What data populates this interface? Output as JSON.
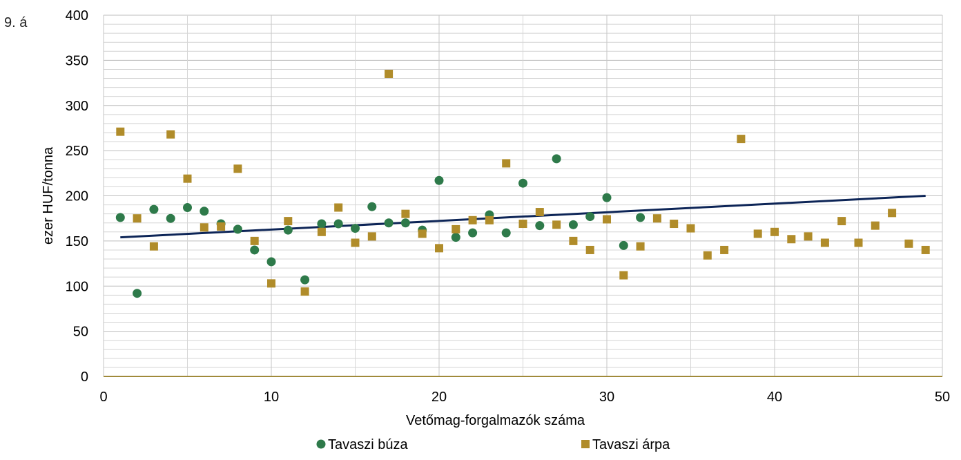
{
  "figure_label": "9. á",
  "chart_data": {
    "type": "scatter",
    "title": "",
    "xlabel": "Vetőmag-forgalmazók száma",
    "ylabel": "ezer HUF/tonna",
    "xlim": [
      0,
      50
    ],
    "ylim": [
      0,
      400
    ],
    "x_ticks": [
      "0",
      "10",
      "20",
      "30",
      "40",
      "50"
    ],
    "y_ticks": [
      "0",
      "50",
      "100",
      "150",
      "200",
      "250",
      "300",
      "350",
      "400"
    ],
    "grid": true,
    "legend_position": "bottom",
    "series": [
      {
        "name": "Tavaszi búza",
        "marker": "circle",
        "color": "#2e7a4a",
        "points": [
          [
            1,
            176
          ],
          [
            2,
            92
          ],
          [
            3,
            185
          ],
          [
            4,
            175
          ],
          [
            5,
            187
          ],
          [
            6,
            183
          ],
          [
            7,
            169
          ],
          [
            8,
            163
          ],
          [
            9,
            140
          ],
          [
            10,
            127
          ],
          [
            11,
            162
          ],
          [
            12,
            107
          ],
          [
            13,
            169
          ],
          [
            14,
            169
          ],
          [
            15,
            164
          ],
          [
            16,
            188
          ],
          [
            17,
            170
          ],
          [
            18,
            170
          ],
          [
            19,
            162
          ],
          [
            20,
            217
          ],
          [
            21,
            154
          ],
          [
            22,
            159
          ],
          [
            23,
            179
          ],
          [
            24,
            159
          ],
          [
            25,
            214
          ],
          [
            26,
            167
          ],
          [
            27,
            241
          ],
          [
            28,
            168
          ],
          [
            29,
            177
          ],
          [
            30,
            198
          ],
          [
            31,
            145
          ],
          [
            32,
            176
          ]
        ]
      },
      {
        "name": "Tavaszi árpa",
        "marker": "square",
        "color": "#b08c2a",
        "points": [
          [
            1,
            271
          ],
          [
            2,
            175
          ],
          [
            3,
            144
          ],
          [
            4,
            268
          ],
          [
            5,
            219
          ],
          [
            6,
            165
          ],
          [
            7,
            166
          ],
          [
            8,
            230
          ],
          [
            9,
            150
          ],
          [
            10,
            103
          ],
          [
            11,
            172
          ],
          [
            12,
            94
          ],
          [
            13,
            160
          ],
          [
            14,
            187
          ],
          [
            15,
            148
          ],
          [
            16,
            155
          ],
          [
            17,
            335
          ],
          [
            18,
            180
          ],
          [
            19,
            158
          ],
          [
            20,
            142
          ],
          [
            21,
            163
          ],
          [
            22,
            173
          ],
          [
            23,
            173
          ],
          [
            24,
            236
          ],
          [
            25,
            169
          ],
          [
            26,
            182
          ],
          [
            27,
            168
          ],
          [
            28,
            150
          ],
          [
            29,
            140
          ],
          [
            30,
            174
          ],
          [
            31,
            112
          ],
          [
            32,
            144
          ],
          [
            33,
            175
          ],
          [
            34,
            169
          ],
          [
            35,
            164
          ],
          [
            36,
            134
          ],
          [
            37,
            140
          ],
          [
            38,
            263
          ],
          [
            39,
            158
          ],
          [
            40,
            160
          ],
          [
            41,
            152
          ],
          [
            42,
            155
          ],
          [
            43,
            148
          ],
          [
            44,
            172
          ],
          [
            45,
            148
          ],
          [
            46,
            167
          ],
          [
            47,
            181
          ],
          [
            48,
            147
          ],
          [
            49,
            140
          ]
        ]
      }
    ],
    "trendline": {
      "color": "#0d2557",
      "x": [
        1,
        49
      ],
      "y": [
        154,
        200
      ]
    }
  }
}
